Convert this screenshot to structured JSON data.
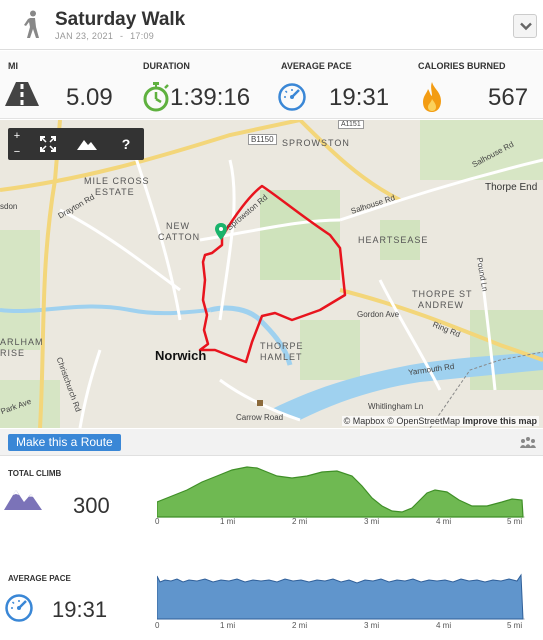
{
  "header": {
    "title": "Saturday Walk",
    "date": "JAN 23, 2021",
    "separator": "-",
    "time": "17:09"
  },
  "stats": [
    {
      "label": "MI",
      "value": "5.09",
      "icon": "road-icon"
    },
    {
      "label": "DURATION",
      "value": "1:39:16",
      "icon": "stopwatch-icon"
    },
    {
      "label": "AVERAGE PACE",
      "value": "19:31",
      "icon": "speedometer-icon"
    },
    {
      "label": "CALORIES BURNED",
      "value": "567",
      "icon": "flame-icon"
    }
  ],
  "map": {
    "controls": {
      "zoom_in": "+",
      "zoom_out": "−",
      "help": "?"
    },
    "labels": {
      "sprowston": "SPROWSTON",
      "mile_cross": "MILE CROSS",
      "estate": "ESTATE",
      "new": "NEW",
      "catton": "CATTON",
      "heartsease": "HEARTSEASE",
      "thorpe_st": "THORPE ST",
      "andrew": "ANDREW",
      "thorpe": "THORPE",
      "hamlet": "HAMLET",
      "thorpe_end": "Thorpe End",
      "arlham": "ARLHAM",
      "rise": "RISE",
      "city": "Norwich"
    },
    "roads": {
      "b1150": "B1150",
      "a1151": "A1151",
      "salhouse_rd_1": "Salhouse Rd",
      "salhouse_rd_2": "Salhouse Rd",
      "drayton_rd": "Drayton Rd",
      "gordon_ave": "Gordon Ave",
      "ring_rd": "Ring Rd",
      "pound_ln": "Pound Ln",
      "yarmouth_rd": "Yarmouth Rd",
      "chris_rd": "Christchurch Rd",
      "park_ave": "Park Ave",
      "carrow_rd": "Carrow Road",
      "whitlingham": "Whitlingham Ln",
      "sdon": "sdon",
      "spr_rd": "Sprowston Rd"
    },
    "attribution": {
      "mapbox": "© Mapbox",
      "osm": "© OpenStreetMap",
      "improve": "Improve this map"
    },
    "route_color": "#e8141e"
  },
  "route_bar": {
    "button_label": "Make this a Route"
  },
  "climb": {
    "label": "TOTAL CLIMB",
    "value": "300",
    "ticks": [
      "0",
      "1 mi",
      "2 mi",
      "3 mi",
      "4 mi",
      "5 mi"
    ],
    "color": "#5fb13f"
  },
  "pace": {
    "label": "AVERAGE PACE",
    "value": "19:31",
    "ticks": [
      "0",
      "1 mi",
      "2 mi",
      "3 mi",
      "4 mi",
      "5 mi"
    ],
    "color": "#4f89c6"
  }
}
